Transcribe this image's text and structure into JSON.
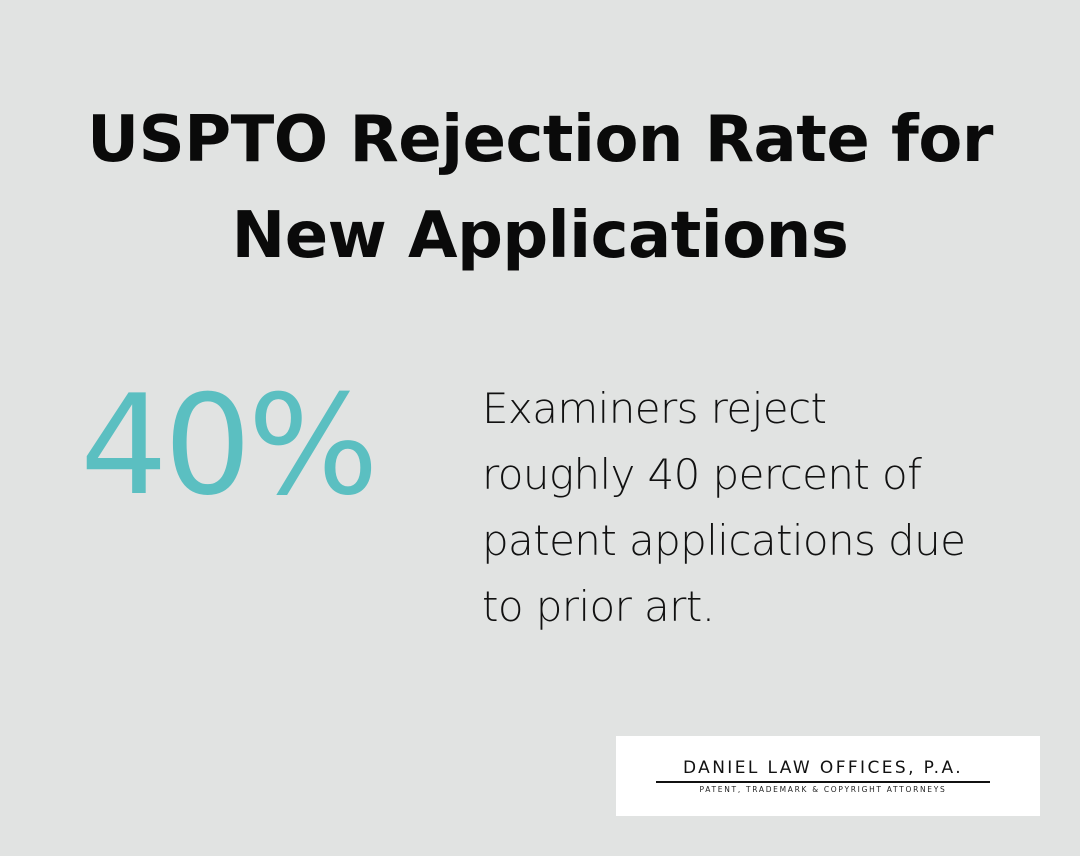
{
  "title": {
    "line1": "USPTO Rejection Rate for",
    "line2": "New Applications"
  },
  "stat": {
    "value": "40%"
  },
  "description": {
    "line1": "Examiners reject",
    "line2": "roughly 40 percent of",
    "line3": "patent applications due",
    "line4": "to prior art."
  },
  "logo": {
    "name": "DANIEL LAW OFFICES, P.A.",
    "tagline": "PATENT, TRADEMARK & COPYRIGHT ATTORNEYS"
  },
  "colors": {
    "background": "#e1e3e2",
    "accent": "#5bbfc1",
    "text": "#0a0a0a"
  }
}
